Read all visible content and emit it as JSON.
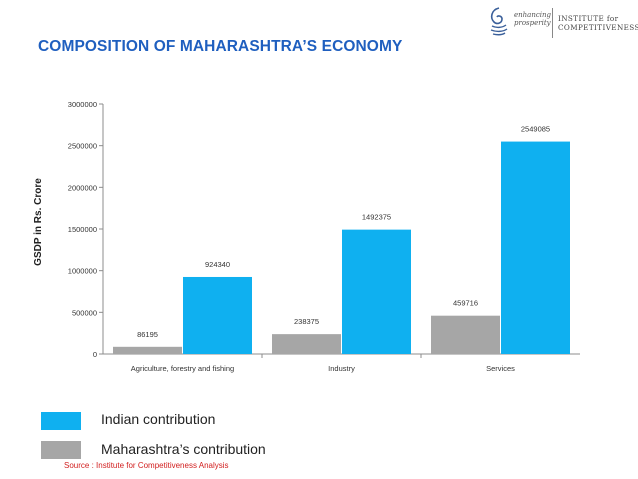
{
  "header": {
    "title": "COMPOSITION OF MAHARASHTRA’S ECONOMY",
    "logo_icon": "spiral-logo-icon",
    "logo_tagline": "enhancing prosperity",
    "logo_name": "INSTITUTE for COMPETITIVENESS"
  },
  "chart_data": {
    "type": "bar",
    "categories": [
      "Agriculture, forestry and fishing",
      "Industry",
      "Services"
    ],
    "series": [
      {
        "name": "Maharashtra’s contribution",
        "color": "#a6a6a6",
        "values": [
          86195,
          238375,
          459716
        ]
      },
      {
        "name": "Indian contribution",
        "color": "#0fb0f0",
        "values": [
          924340,
          1492375,
          2549085
        ]
      }
    ],
    "ylabel": "GSDP in Rs. Crore",
    "xlabel": "",
    "ylim": [
      0,
      3000000
    ],
    "yticks": [
      "0",
      "500000",
      "1000000",
      "1500000",
      "2000000",
      "2500000",
      "3000000"
    ],
    "grid": false,
    "legend_position": "bottom-left"
  },
  "legend": {
    "indian_label": "Indian contribution",
    "indian_color": "#0fb0f0",
    "maharashtra_label": "Maharashtra’s contribution",
    "maharashtra_color": "#a6a6a6"
  },
  "source": "Source : Institute for Competitiveness Analysis"
}
